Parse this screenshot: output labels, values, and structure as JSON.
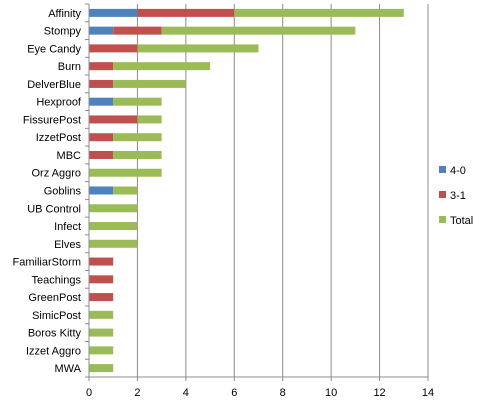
{
  "chart_data": {
    "type": "bar",
    "orientation": "horizontal",
    "stacked": true,
    "categories": [
      "Affinity",
      "Stompy",
      "Eye Candy",
      "Burn",
      "DelverBlue",
      "Hexproof",
      "FissurePost",
      "IzzetPost",
      "MBC",
      "Orz Aggro",
      "Goblins",
      "UB Control",
      "Infect",
      "Elves",
      "FamiliarStorm",
      "Teachings",
      "GreenPost",
      "SimicPost",
      "Boros Kitty",
      "Izzet Aggro",
      "MWA"
    ],
    "series": [
      {
        "name": "4-0",
        "color": "#4F81BD",
        "values": [
          2,
          1,
          0,
          0,
          0,
          1,
          0,
          0,
          0,
          0,
          1,
          0,
          0,
          0,
          0,
          0,
          0,
          0,
          0,
          0,
          0
        ]
      },
      {
        "name": "3-1",
        "color": "#C0504D",
        "values": [
          4,
          2,
          2,
          1,
          1,
          0,
          2,
          1,
          1,
          0,
          0,
          0,
          0,
          0,
          1,
          1,
          1,
          0,
          0,
          0,
          0
        ]
      },
      {
        "name": "Total",
        "color": "#9BBB59",
        "values": [
          7,
          8,
          5,
          4,
          3,
          2,
          1,
          2,
          2,
          3,
          1,
          2,
          2,
          2,
          0,
          0,
          0,
          1,
          1,
          1,
          1
        ]
      }
    ],
    "xlim": [
      0,
      14
    ],
    "xticks": [
      "0",
      "2",
      "4",
      "6",
      "8",
      "10",
      "12",
      "14"
    ],
    "grid": "vertical",
    "legend": "right"
  }
}
